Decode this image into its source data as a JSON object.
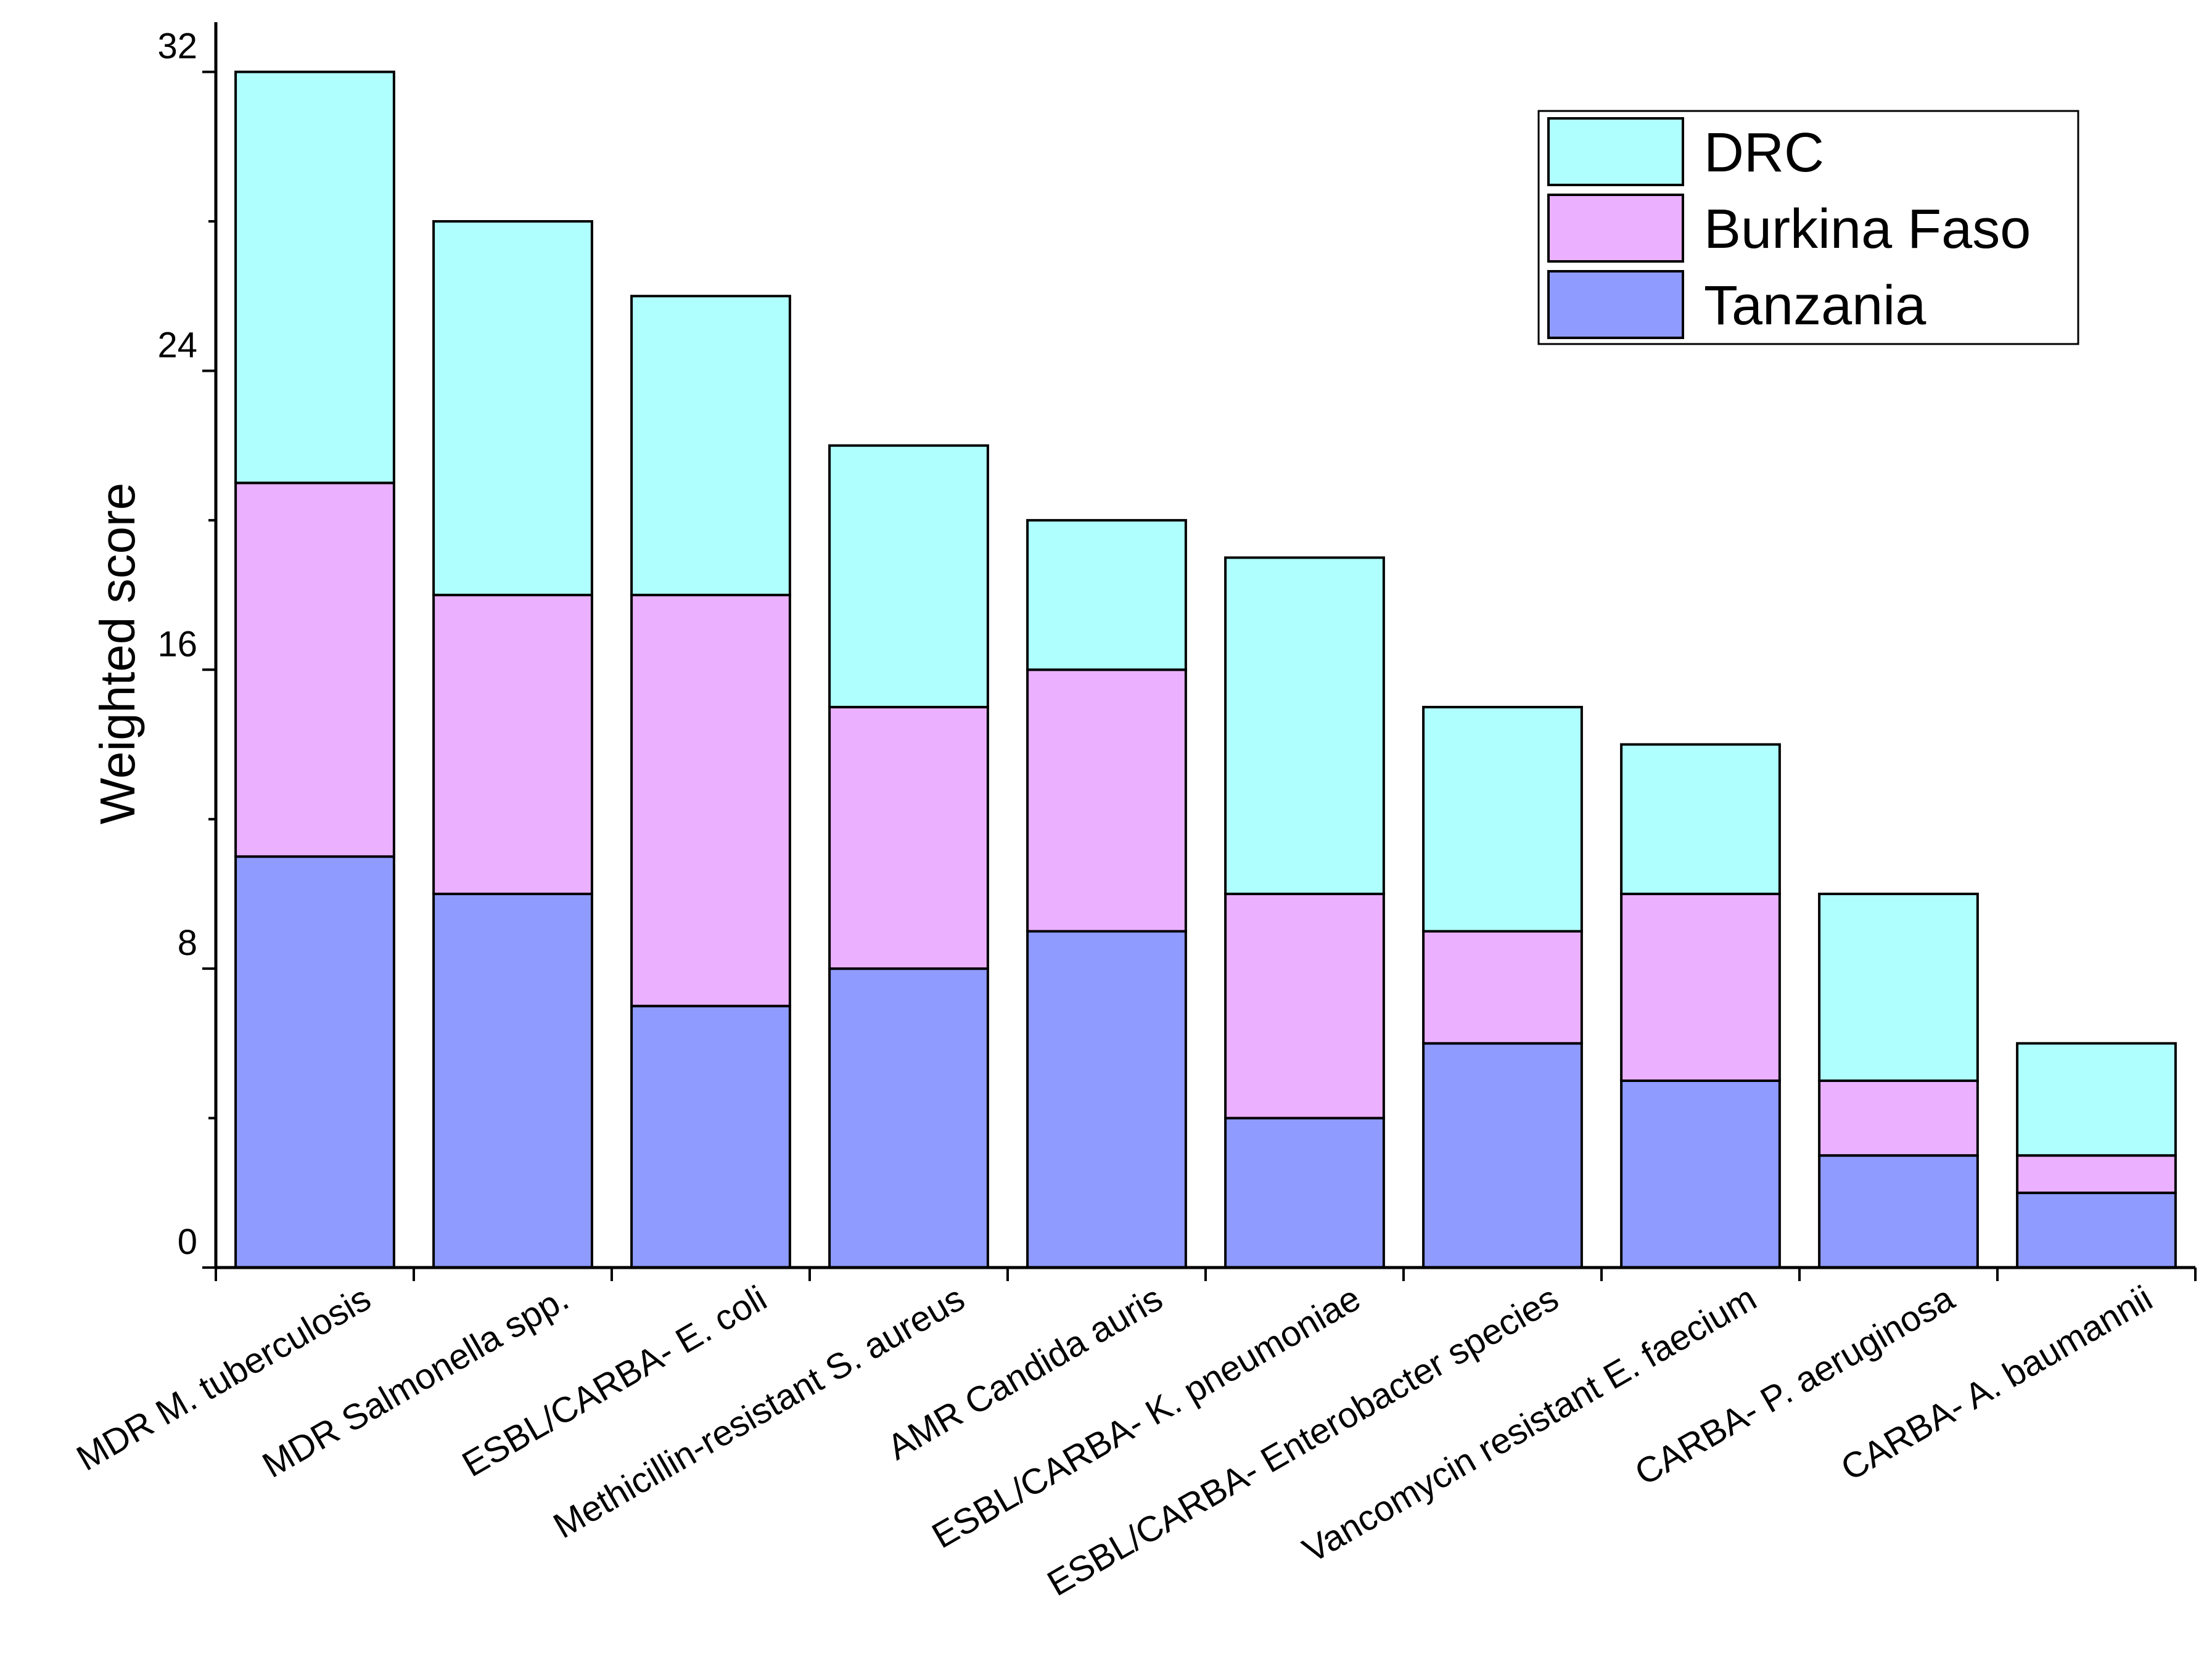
{
  "chart_data": {
    "type": "bar",
    "stacked": true,
    "title": "",
    "xlabel": "",
    "ylabel": "Weighted score",
    "ylim": [
      0,
      33
    ],
    "yticks": [
      0,
      8,
      16,
      24,
      32
    ],
    "categories": [
      "MDR M. tuberculosis",
      "MDR Salmonella spp.",
      "ESBL/CARBA- E. coli",
      "Methicillin-resistant S. aureus",
      "AMR Candida auris",
      "ESBL/CARBA- K. pneumoniae",
      "ESBL/CARBA- Enterobacter species",
      "Vancomycin resistant E. faecium",
      "CARBA- P. aeruginosa",
      "CARBA- A. baumannii"
    ],
    "series": [
      {
        "name": "Tanzania",
        "color": "#8f9bff",
        "values": [
          11,
          10,
          7,
          8,
          9,
          4,
          6,
          5,
          3,
          2
        ]
      },
      {
        "name": "Burkina Faso",
        "color": "#ebb0ff",
        "values": [
          10,
          8,
          11,
          7,
          7,
          6,
          3,
          5,
          2,
          1
        ]
      },
      {
        "name": "DRC",
        "color": "#b0ffff",
        "values": [
          11,
          10,
          8,
          7,
          4,
          9,
          6,
          4,
          5,
          3
        ]
      }
    ],
    "legend": {
      "position": "top-right",
      "order": [
        "DRC",
        "Burkina Faso",
        "Tanzania"
      ]
    }
  }
}
